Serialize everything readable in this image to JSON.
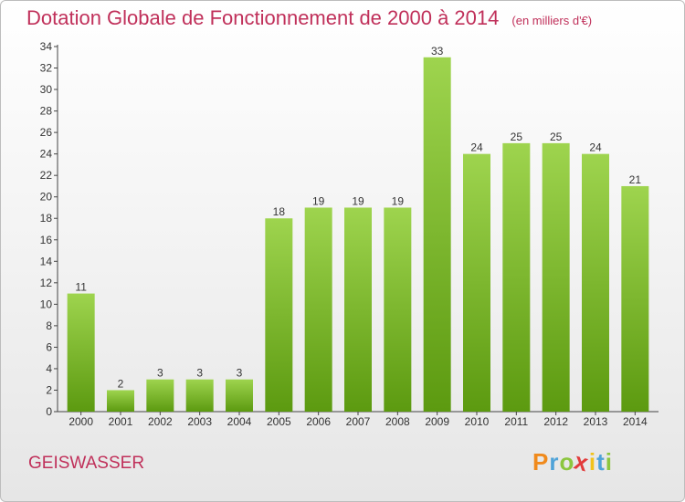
{
  "chart_data": {
    "type": "bar",
    "title": "Dotation Globale de Fonctionnement de 2000 à 2014",
    "unit": "(en milliers d'€)",
    "categories": [
      "2000",
      "2001",
      "2002",
      "2003",
      "2004",
      "2005",
      "2006",
      "2007",
      "2008",
      "2009",
      "2010",
      "2011",
      "2012",
      "2013",
      "2014"
    ],
    "values": [
      11,
      2,
      3,
      3,
      3,
      18,
      19,
      19,
      19,
      33,
      24,
      25,
      25,
      24,
      21
    ],
    "ylim": [
      0,
      34
    ],
    "yticks": [
      0,
      2,
      4,
      6,
      8,
      10,
      12,
      14,
      16,
      18,
      20,
      22,
      24,
      26,
      28,
      30,
      32,
      34
    ],
    "grid": false,
    "legend": "none",
    "colors": {
      "bar_top": "#9ed44e",
      "bar_bottom": "#5c9a10",
      "title": "#c0305a"
    }
  },
  "commune": "GEISWASSER",
  "logo": {
    "letters": [
      "P",
      "r",
      "o",
      "x",
      "i",
      "t",
      "i"
    ],
    "colors": [
      "#f08a1c",
      "#4fa3d8",
      "#8cc63f",
      "#e23b3b",
      "#f2c21b",
      "#4fa3d8",
      "#8cc63f"
    ]
  }
}
